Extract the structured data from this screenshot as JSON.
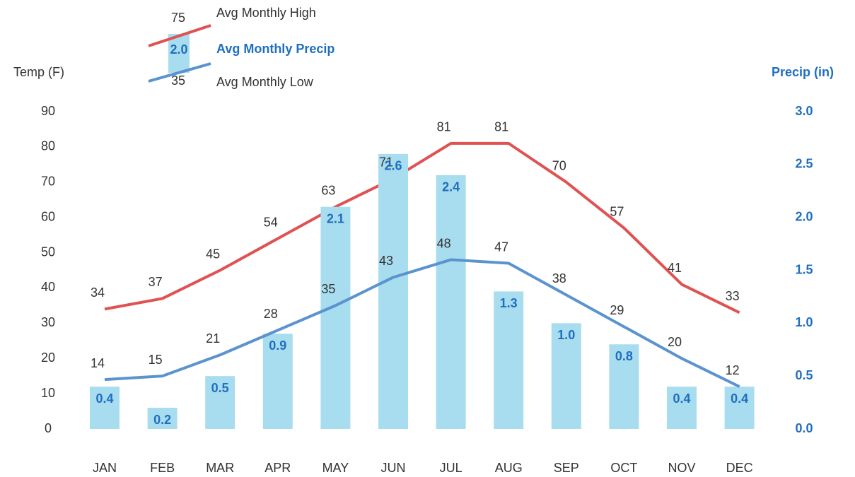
{
  "chart_data": {
    "type": "combo",
    "y_label": "Temp (F)",
    "y2_label": "Precip (in)",
    "categories": [
      "JAN",
      "FEB",
      "MAR",
      "APR",
      "MAY",
      "JUN",
      "JUL",
      "AUG",
      "SEP",
      "OCT",
      "NOV",
      "DEC"
    ],
    "series": [
      {
        "name": "Avg Monthly High",
        "type": "line",
        "color": "#e05252",
        "values": [
          34,
          37,
          45,
          54,
          63,
          71,
          81,
          81,
          70,
          57,
          41,
          33
        ]
      },
      {
        "name": "Avg Monthly Precip",
        "type": "bar",
        "axis": "y2",
        "color": "#a8dcef",
        "label_color": "#1f6fbf",
        "values": [
          0.4,
          0.2,
          0.5,
          0.9,
          2.1,
          2.6,
          2.4,
          1.3,
          1.0,
          0.8,
          0.4,
          0.4
        ],
        "value_labels": [
          "0.4",
          "0.2",
          "0.5",
          "0.9",
          "2.1",
          "2.6",
          "2.4",
          "1.3",
          "1.0",
          "0.8",
          "0.4",
          "0.4"
        ]
      },
      {
        "name": "Avg Monthly Low",
        "type": "line",
        "color": "#5b93cf",
        "values": [
          14,
          15,
          21,
          28,
          35,
          43,
          48,
          47,
          38,
          29,
          20,
          12
        ]
      }
    ],
    "legend_samples": [
      "75",
      "2.0",
      "35"
    ],
    "ylim": [
      0,
      90
    ],
    "yticks": [
      0,
      10,
      20,
      30,
      40,
      50,
      60,
      70,
      80,
      90
    ],
    "y2lim": [
      0,
      3
    ],
    "y2ticks": [
      {
        "value": 0,
        "label": "0.0"
      },
      {
        "value": 0.5,
        "label": "0.5"
      },
      {
        "value": 1,
        "label": "1.0"
      },
      {
        "value": 1.5,
        "label": "1.5"
      },
      {
        "value": 2,
        "label": "2.0"
      },
      {
        "value": 2.5,
        "label": "2.5"
      },
      {
        "value": 3,
        "label": "3.0"
      }
    ],
    "grid": false
  }
}
